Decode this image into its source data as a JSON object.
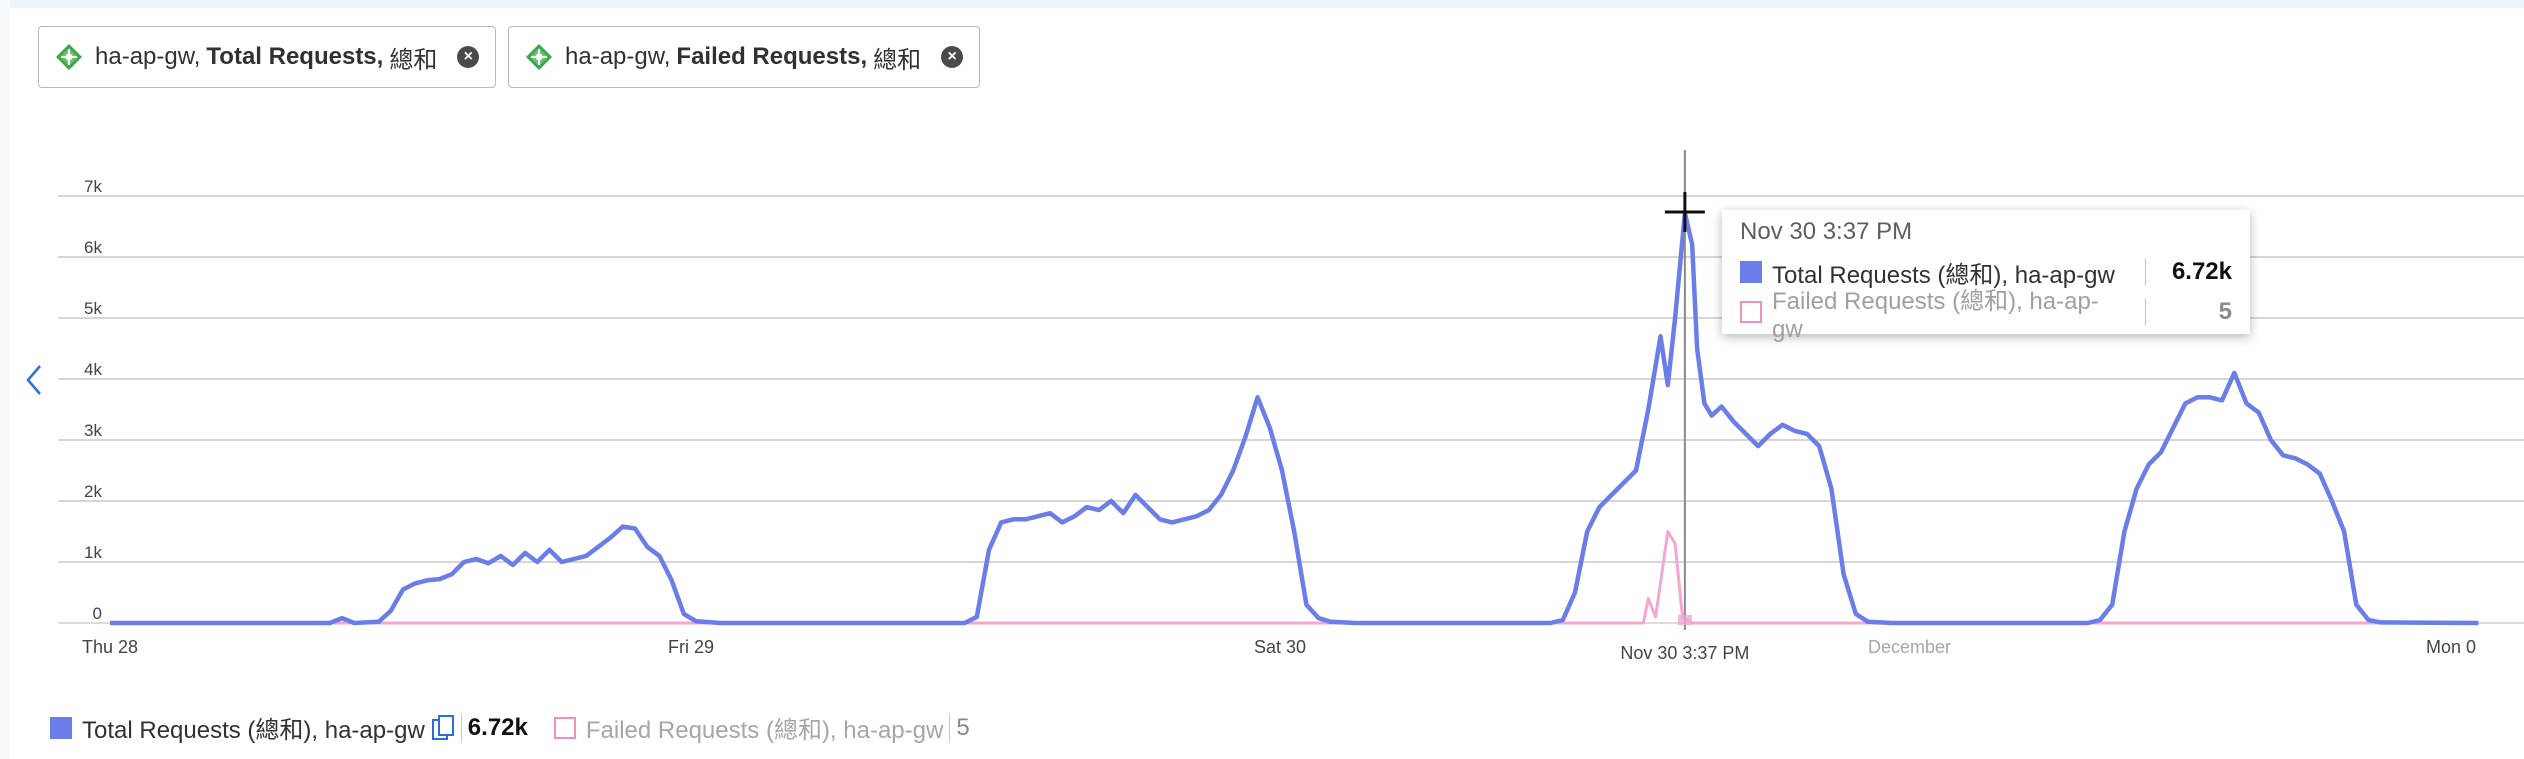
{
  "chips": [
    {
      "resource": "ha-ap-gw,",
      "metric": "Total Requests,",
      "aggregation": "總和"
    },
    {
      "resource": "ha-ap-gw,",
      "metric": "Failed Requests,",
      "aggregation": "總和"
    }
  ],
  "chart_data": {
    "type": "line",
    "title": "",
    "xlabel": "",
    "ylabel": "",
    "x_ticks": [
      {
        "label": "Thu 28",
        "t": 0
      },
      {
        "label": "Fri 29",
        "t": 24
      },
      {
        "label": "Sat 30",
        "t": 48
      },
      {
        "label": "December",
        "t": 72
      },
      {
        "label": "Mon 0",
        "t": 96
      }
    ],
    "crosshair": {
      "label": "Nov 30 3:37 PM",
      "t": 64.5
    },
    "x_range": [
      -0.8,
      97.5
    ],
    "y_ticks": [
      "0",
      "1k",
      "2k",
      "3k",
      "4k",
      "5k",
      "6k",
      "7k"
    ],
    "ylim": [
      0,
      7000
    ],
    "y_tick_values": [
      0,
      1000,
      2000,
      3000,
      4000,
      5000,
      6000,
      7000
    ],
    "series": [
      {
        "name": "Total Requests (總和), ha-ap-gw",
        "color": "#6b7de8",
        "points": [
          [
            0,
            0
          ],
          [
            9,
            0
          ],
          [
            9.5,
            80
          ],
          [
            10,
            0
          ],
          [
            11,
            20
          ],
          [
            11.5,
            200
          ],
          [
            12,
            550
          ],
          [
            12.5,
            650
          ],
          [
            13,
            700
          ],
          [
            13.5,
            720
          ],
          [
            14,
            800
          ],
          [
            14.5,
            1000
          ],
          [
            15,
            1050
          ],
          [
            15.5,
            980
          ],
          [
            16,
            1100
          ],
          [
            16.5,
            950
          ],
          [
            17,
            1150
          ],
          [
            17.5,
            1000
          ],
          [
            18,
            1200
          ],
          [
            18.5,
            1000
          ],
          [
            19,
            1050
          ],
          [
            19.5,
            1100
          ],
          [
            20,
            1250
          ],
          [
            20.5,
            1400
          ],
          [
            21,
            1580
          ],
          [
            21.5,
            1550
          ],
          [
            22,
            1250
          ],
          [
            22.5,
            1100
          ],
          [
            23,
            700
          ],
          [
            23.5,
            150
          ],
          [
            24,
            30
          ],
          [
            25,
            0
          ],
          [
            35,
            0
          ],
          [
            35.5,
            100
          ],
          [
            36,
            1200
          ],
          [
            36.5,
            1650
          ],
          [
            37,
            1700
          ],
          [
            37.5,
            1700
          ],
          [
            38,
            1750
          ],
          [
            38.5,
            1800
          ],
          [
            39,
            1650
          ],
          [
            39.5,
            1750
          ],
          [
            40,
            1900
          ],
          [
            40.5,
            1850
          ],
          [
            41,
            2000
          ],
          [
            41.5,
            1800
          ],
          [
            42,
            2100
          ],
          [
            42.5,
            1900
          ],
          [
            43,
            1700
          ],
          [
            43.5,
            1650
          ],
          [
            44,
            1700
          ],
          [
            44.5,
            1750
          ],
          [
            45,
            1850
          ],
          [
            45.5,
            2100
          ],
          [
            46,
            2500
          ],
          [
            46.5,
            3050
          ],
          [
            47,
            3700
          ],
          [
            47.5,
            3200
          ],
          [
            48,
            2500
          ],
          [
            48.5,
            1500
          ],
          [
            49,
            300
          ],
          [
            49.5,
            80
          ],
          [
            50,
            20
          ],
          [
            51,
            0
          ],
          [
            59,
            0
          ],
          [
            59.5,
            50
          ],
          [
            60,
            500
          ],
          [
            60.5,
            1500
          ],
          [
            61,
            1900
          ],
          [
            61.5,
            2100
          ],
          [
            62,
            2300
          ],
          [
            62.5,
            2500
          ],
          [
            63,
            3500
          ],
          [
            63.5,
            4700
          ],
          [
            63.8,
            3900
          ],
          [
            64.1,
            5000
          ],
          [
            64.5,
            6720
          ],
          [
            64.8,
            6200
          ],
          [
            65,
            4500
          ],
          [
            65.3,
            3600
          ],
          [
            65.6,
            3400
          ],
          [
            66,
            3550
          ],
          [
            66.5,
            3300
          ],
          [
            67,
            3100
          ],
          [
            67.5,
            2900
          ],
          [
            68,
            3100
          ],
          [
            68.5,
            3250
          ],
          [
            69,
            3150
          ],
          [
            69.5,
            3100
          ],
          [
            70,
            2900
          ],
          [
            70.5,
            2200
          ],
          [
            71,
            800
          ],
          [
            71.5,
            150
          ],
          [
            72,
            20
          ],
          [
            73,
            0
          ],
          [
            81,
            0
          ],
          [
            81.5,
            50
          ],
          [
            82,
            300
          ],
          [
            82.5,
            1500
          ],
          [
            83,
            2200
          ],
          [
            83.5,
            2600
          ],
          [
            84,
            2800
          ],
          [
            84.5,
            3200
          ],
          [
            85,
            3600
          ],
          [
            85.5,
            3700
          ],
          [
            86,
            3700
          ],
          [
            86.5,
            3650
          ],
          [
            87,
            4100
          ],
          [
            87.5,
            3600
          ],
          [
            88,
            3450
          ],
          [
            88.5,
            3000
          ],
          [
            89,
            2750
          ],
          [
            89.5,
            2700
          ],
          [
            90,
            2600
          ],
          [
            90.5,
            2450
          ],
          [
            91,
            2000
          ],
          [
            91.5,
            1500
          ],
          [
            92,
            300
          ],
          [
            92.5,
            50
          ],
          [
            93,
            10
          ],
          [
            97,
            0
          ]
        ]
      },
      {
        "name": "Failed Requests (總和), ha-ap-gw",
        "color": "#f3a7d2",
        "points": [
          [
            0,
            0
          ],
          [
            62.8,
            0
          ],
          [
            63,
            400
          ],
          [
            63.3,
            100
          ],
          [
            63.8,
            1500
          ],
          [
            64.1,
            1300
          ],
          [
            64.4,
            100
          ],
          [
            64.8,
            0
          ],
          [
            97,
            0
          ]
        ]
      }
    ],
    "legend_placement": "bottom-left",
    "grid": "horizontal"
  },
  "tooltip": {
    "date": "Nov 30 3:37 PM",
    "rows": [
      {
        "label": "Total Requests (總和), ha-ap-gw",
        "value": "6.72k"
      },
      {
        "label": "Failed Requests (總和), ha-ap-gw",
        "value": "5"
      }
    ]
  },
  "legend": [
    {
      "label": "Total Requests (總和), ha-ap-gw",
      "value": "6.72k"
    },
    {
      "label": "Failed Requests (總和), ha-ap-gw",
      "value": "5"
    }
  ],
  "icons": {
    "resource": "application-gateway-icon",
    "remove": "close-icon",
    "copy": "copy-icon",
    "prev": "chevron-left-icon"
  }
}
